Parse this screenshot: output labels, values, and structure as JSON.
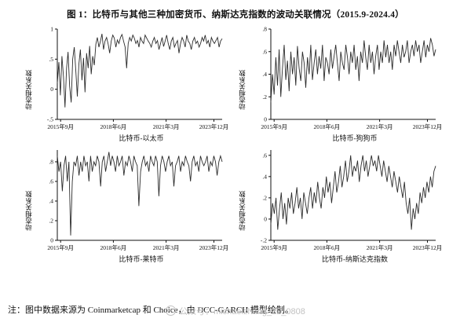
{
  "title": "图 1：比特币与其他三种加密货币、纳斯达克指数的波动关联情况（2015.9-2024.4）",
  "note": "注：图中数据来源为 Coinmarketcap 和 Choice，由 DCC-GARCH 模型绘制。",
  "watermark": "公众号：michaelzhang_22_0808",
  "line_color": "#2b2b2b",
  "axis_color": "#111111",
  "chart_data": [
    {
      "type": "line",
      "xlabel": "比特币-以太币",
      "ylabel": "动态相关系数",
      "ylim": [
        -0.5,
        1
      ],
      "yticks": [
        {
          "v": -0.5,
          "label": "-.5"
        },
        {
          "v": 0,
          "label": "0"
        },
        {
          "v": 0.5,
          "label": ".5"
        },
        {
          "v": 1,
          "label": "1"
        }
      ],
      "xticks": [
        {
          "f": 0.02,
          "label": "2015年9月"
        },
        {
          "f": 0.34,
          "label": "2018年6月"
        },
        {
          "f": 0.66,
          "label": "2021年3月"
        },
        {
          "f": 0.95,
          "label": "2023年12月"
        }
      ],
      "values": [
        0.1,
        0.45,
        -0.1,
        0.55,
        0.2,
        -0.3,
        0.35,
        0.62,
        0.05,
        -0.22,
        0.5,
        0.7,
        0.3,
        -0.12,
        0.42,
        0.66,
        0.15,
        0.52,
        -0.05,
        0.6,
        0.35,
        0.72,
        0.25,
        0.55,
        0.4,
        0.75,
        0.86,
        0.7,
        0.8,
        0.92,
        0.66,
        0.8,
        0.86,
        0.75,
        0.6,
        0.8,
        0.9,
        0.85,
        0.7,
        0.82,
        0.76,
        0.86,
        0.91,
        0.8,
        0.7,
        0.35,
        0.76,
        0.86,
        0.8,
        0.9,
        0.85,
        0.76,
        0.81,
        0.7,
        0.86,
        0.8,
        0.76,
        0.9,
        0.85,
        0.8,
        0.76,
        0.7,
        0.8,
        0.86,
        0.76,
        0.81,
        0.66,
        0.76,
        0.86,
        0.71,
        0.8,
        0.9,
        0.76,
        0.66,
        0.8,
        0.86,
        0.7,
        0.76,
        0.81,
        0.6,
        0.76,
        0.86,
        0.8,
        0.7,
        0.9,
        0.8,
        0.76,
        0.66,
        0.8,
        0.86,
        0.76,
        0.8,
        0.7,
        0.76,
        0.86,
        0.8,
        0.9,
        0.76,
        0.81,
        0.7,
        0.86,
        0.8,
        0.76,
        0.81,
        0.86,
        0.7,
        0.8,
        0.84
      ]
    },
    {
      "type": "line",
      "xlabel": "比特币-狗狗币",
      "ylabel": "动态相关系数",
      "ylim": [
        0,
        0.8
      ],
      "yticks": [
        {
          "v": 0,
          "label": "0"
        },
        {
          "v": 0.2,
          "label": ".2"
        },
        {
          "v": 0.4,
          "label": ".4"
        },
        {
          "v": 0.6,
          "label": ".6"
        },
        {
          "v": 0.8,
          "label": ".8"
        }
      ],
      "xticks": [
        {
          "f": 0.02,
          "label": "2015年9月"
        },
        {
          "f": 0.34,
          "label": "2018年6月"
        },
        {
          "f": 0.66,
          "label": "2021年3月"
        },
        {
          "f": 0.95,
          "label": "2023年12月"
        }
      ],
      "values": [
        0.15,
        0.4,
        0.22,
        0.55,
        0.3,
        0.62,
        0.2,
        0.45,
        0.66,
        0.35,
        0.52,
        0.25,
        0.6,
        0.4,
        0.55,
        0.3,
        0.65,
        0.45,
        0.34,
        0.6,
        0.5,
        0.28,
        0.55,
        0.4,
        0.66,
        0.35,
        0.5,
        0.62,
        0.4,
        0.56,
        0.45,
        0.66,
        0.34,
        0.55,
        0.5,
        0.4,
        0.62,
        0.45,
        0.56,
        0.66,
        0.5,
        0.34,
        0.6,
        0.5,
        0.44,
        0.66,
        0.55,
        0.4,
        0.6,
        0.5,
        0.66,
        0.44,
        0.56,
        0.34,
        0.6,
        0.5,
        0.7,
        0.55,
        0.44,
        0.66,
        0.5,
        0.6,
        0.4,
        0.56,
        0.66,
        0.44,
        0.6,
        0.5,
        0.7,
        0.55,
        0.66,
        0.5,
        0.6,
        0.44,
        0.66,
        0.56,
        0.7,
        0.6,
        0.5,
        0.66,
        0.55,
        0.6,
        0.7,
        0.5,
        0.6,
        0.66,
        0.56,
        0.7,
        0.6,
        0.66,
        0.5,
        0.6,
        0.7,
        0.55,
        0.66,
        0.6,
        0.72,
        0.66,
        0.56,
        0.62
      ]
    },
    {
      "type": "line",
      "xlabel": "比特币-莱特币",
      "ylabel": "动态相关系数",
      "ylim": [
        0,
        0.92
      ],
      "yticks": [
        {
          "v": 0,
          "label": "0"
        },
        {
          "v": 0.2,
          "label": ".2"
        },
        {
          "v": 0.4,
          "label": ".4"
        },
        {
          "v": 0.6,
          "label": ".6"
        },
        {
          "v": 0.8,
          "label": ".8"
        }
      ],
      "xticks": [
        {
          "f": 0.02,
          "label": "2015年9月"
        },
        {
          "f": 0.34,
          "label": "2018年6月"
        },
        {
          "f": 0.66,
          "label": "2021年3月"
        },
        {
          "f": 0.95,
          "label": "2023年12月"
        }
      ],
      "values": [
        0.86,
        0.7,
        0.8,
        0.5,
        0.76,
        0.86,
        0.6,
        0.8,
        0.05,
        0.6,
        0.8,
        0.76,
        0.86,
        0.66,
        0.8,
        0.7,
        0.86,
        0.76,
        0.8,
        0.6,
        0.86,
        0.7,
        0.8,
        0.76,
        0.86,
        0.8,
        0.55,
        0.8,
        0.86,
        0.7,
        0.8,
        0.9,
        0.76,
        0.86,
        0.8,
        0.7,
        0.86,
        0.76,
        0.8,
        0.86,
        0.66,
        0.8,
        0.76,
        0.86,
        0.8,
        0.7,
        0.86,
        0.8,
        0.76,
        0.35,
        0.7,
        0.8,
        0.86,
        0.76,
        0.8,
        0.7,
        0.86,
        0.8,
        0.76,
        0.86,
        0.8,
        0.45,
        0.76,
        0.86,
        0.8,
        0.7,
        0.8,
        0.86,
        0.76,
        0.8,
        0.55,
        0.76,
        0.8,
        0.86,
        0.7,
        0.8,
        0.76,
        0.86,
        0.8,
        0.76,
        0.6,
        0.8,
        0.86,
        0.76,
        0.8,
        0.7,
        0.86,
        0.8,
        0.76,
        0.8,
        0.86,
        0.7,
        0.8,
        0.76,
        0.86,
        0.8,
        0.66,
        0.8,
        0.86,
        0.8
      ]
    },
    {
      "type": "line",
      "xlabel": "比特币-纳斯达克指数",
      "ylabel": "动态相关系数",
      "ylim": [
        -0.2,
        0.65
      ],
      "yticks": [
        {
          "v": -0.2,
          "label": "-.2"
        },
        {
          "v": 0,
          "label": "0"
        },
        {
          "v": 0.2,
          "label": ".2"
        },
        {
          "v": 0.4,
          "label": ".4"
        },
        {
          "v": 0.6,
          "label": ".6"
        }
      ],
      "xticks": [
        {
          "f": 0.02,
          "label": "2015年9月"
        },
        {
          "f": 0.34,
          "label": "2018年6月"
        },
        {
          "f": 0.66,
          "label": "2021年3月"
        },
        {
          "f": 0.95,
          "label": "2023年12月"
        }
      ],
      "values": [
        -0.05,
        0.15,
        0.05,
        0.2,
        -0.1,
        0.1,
        0.25,
        0.0,
        0.15,
        -0.05,
        0.2,
        0.1,
        0.25,
        0.05,
        0.15,
        0.3,
        0.1,
        0.2,
        0.0,
        0.25,
        0.15,
        0.05,
        0.2,
        0.3,
        0.1,
        0.25,
        0.15,
        0.35,
        0.2,
        0.1,
        0.3,
        0.2,
        0.4,
        0.25,
        0.35,
        0.15,
        0.3,
        0.45,
        0.25,
        0.35,
        0.5,
        0.3,
        0.4,
        0.55,
        0.35,
        0.45,
        0.6,
        0.4,
        0.5,
        0.45,
        0.55,
        0.35,
        0.5,
        0.6,
        0.45,
        0.55,
        0.4,
        0.5,
        0.6,
        0.5,
        0.55,
        0.45,
        0.6,
        0.5,
        0.4,
        0.55,
        0.45,
        0.35,
        0.5,
        0.4,
        0.3,
        0.45,
        0.35,
        0.25,
        0.4,
        0.3,
        0.2,
        0.35,
        0.15,
        0.05,
        0.2,
        -0.1,
        0.1,
        0.0,
        0.15,
        0.05,
        0.25,
        0.15,
        0.3,
        0.2,
        0.35,
        0.25,
        0.4,
        0.3,
        0.45,
        0.5
      ]
    }
  ]
}
